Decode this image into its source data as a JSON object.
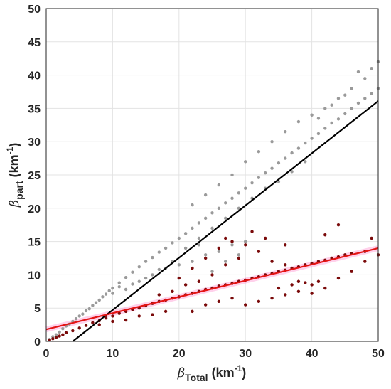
{
  "chart_data": {
    "type": "scatter",
    "title": "",
    "xlabel": {
      "symbol": "β",
      "sub": "Total",
      "unit": "(km",
      "sup": "-1",
      "close": ")"
    },
    "ylabel": {
      "symbol": "β",
      "sub": "part",
      "unit": "(km",
      "sup": "-1",
      "close": ")"
    },
    "xlim": [
      0,
      50
    ],
    "ylim": [
      0,
      50
    ],
    "xticks": [
      0,
      10,
      20,
      30,
      40,
      50
    ],
    "yticks": [
      0,
      5,
      10,
      15,
      20,
      25,
      30,
      35,
      40,
      45,
      50
    ],
    "grid": true,
    "legend": "none",
    "series": [
      {
        "color": "#9a9a9a",
        "marker": "dot",
        "points": [
          [
            0.5,
            0.3
          ],
          [
            1,
            0.7
          ],
          [
            1.5,
            1.0
          ],
          [
            2,
            1.4
          ],
          [
            2.5,
            1.9
          ],
          [
            3,
            2.3
          ],
          [
            3.5,
            2.6
          ],
          [
            4,
            3.0
          ],
          [
            4.5,
            3.4
          ],
          [
            5,
            3.8
          ],
          [
            5.5,
            4.1
          ],
          [
            6,
            4.6
          ],
          [
            6.5,
            4.9
          ],
          [
            7,
            5.4
          ],
          [
            7.5,
            5.8
          ],
          [
            8,
            6.2
          ],
          [
            8.5,
            6.7
          ],
          [
            9,
            7.1
          ],
          [
            9.5,
            7.6
          ],
          [
            10,
            8.0
          ],
          [
            11,
            8.8
          ],
          [
            12,
            9.6
          ],
          [
            13,
            10.4
          ],
          [
            14,
            11.2
          ],
          [
            15,
            12.0
          ],
          [
            16,
            12.6
          ],
          [
            17,
            13.4
          ],
          [
            18,
            14.0
          ],
          [
            19,
            14.8
          ],
          [
            20,
            15.5
          ],
          [
            21,
            16.2
          ],
          [
            22,
            17.0
          ],
          [
            23,
            17.8
          ],
          [
            24,
            18.5
          ],
          [
            25,
            19.3
          ],
          [
            26,
            20.0
          ],
          [
            27,
            20.8
          ],
          [
            28,
            21.5
          ],
          [
            29,
            22.3
          ],
          [
            30,
            23.0
          ],
          [
            31,
            23.8
          ],
          [
            32,
            24.6
          ],
          [
            33,
            25.3
          ],
          [
            34,
            26.0
          ],
          [
            35,
            26.8
          ],
          [
            36,
            27.5
          ],
          [
            37,
            28.3
          ],
          [
            38,
            29.0
          ],
          [
            39,
            29.8
          ],
          [
            40,
            30.5
          ],
          [
            41,
            31.2
          ],
          [
            42,
            32.0
          ],
          [
            43,
            32.8
          ],
          [
            44,
            33.4
          ],
          [
            45,
            34.2
          ],
          [
            46,
            35.0
          ],
          [
            47,
            35.8
          ],
          [
            48,
            36.5
          ],
          [
            49,
            37.2
          ],
          [
            50,
            38.0
          ],
          [
            22,
            20.5
          ],
          [
            24,
            22.0
          ],
          [
            26,
            23.5
          ],
          [
            28,
            25.0
          ],
          [
            30,
            27.0
          ],
          [
            32,
            28.5
          ],
          [
            34,
            30.0
          ],
          [
            36,
            31.5
          ],
          [
            38,
            33.0
          ],
          [
            40,
            34.0
          ],
          [
            42,
            35.0
          ],
          [
            44,
            36.5
          ],
          [
            46,
            38.0
          ],
          [
            48,
            39.5
          ],
          [
            49,
            41.0
          ],
          [
            50,
            42.0
          ],
          [
            47,
            40.5
          ],
          [
            45,
            37.0
          ],
          [
            43,
            35.5
          ],
          [
            41,
            33.5
          ],
          [
            20,
            11.5
          ],
          [
            22,
            12.0
          ],
          [
            24,
            13.0
          ],
          [
            26,
            13.5
          ],
          [
            28,
            14.5
          ],
          [
            30,
            15.0
          ],
          [
            25,
            10.5
          ],
          [
            27,
            12.0
          ],
          [
            29,
            13.0
          ],
          [
            23,
            14.5
          ],
          [
            15,
            9.5
          ],
          [
            16,
            10.0
          ],
          [
            17,
            10.8
          ],
          [
            18,
            11.0
          ],
          [
            19,
            12.0
          ],
          [
            12,
            7.8
          ],
          [
            13,
            8.6
          ],
          [
            14,
            9.0
          ],
          [
            11,
            8.2
          ],
          [
            10,
            7.2
          ],
          [
            35,
            24.0
          ],
          [
            37,
            25.5
          ],
          [
            39,
            27.0
          ],
          [
            33,
            23.0
          ],
          [
            31,
            21.5
          ],
          [
            29,
            20.0
          ],
          [
            27,
            18.5
          ],
          [
            25,
            17.0
          ],
          [
            23,
            15.5
          ],
          [
            21,
            14.0
          ]
        ]
      },
      {
        "color": "#7a0a0a",
        "marker": "dot",
        "points": [
          [
            0.5,
            0.2
          ],
          [
            1,
            0.4
          ],
          [
            1.5,
            0.6
          ],
          [
            2,
            0.8
          ],
          [
            2.5,
            1.0
          ],
          [
            3,
            1.3
          ],
          [
            4,
            1.6
          ],
          [
            5,
            2.0
          ],
          [
            6,
            2.4
          ],
          [
            7,
            2.8
          ],
          [
            8,
            3.1
          ],
          [
            9,
            3.5
          ],
          [
            10,
            3.8
          ],
          [
            11,
            4.2
          ],
          [
            12,
            4.5
          ],
          [
            13,
            4.8
          ],
          [
            14,
            5.0
          ],
          [
            15,
            5.4
          ],
          [
            16,
            5.7
          ],
          [
            17,
            6.0
          ],
          [
            18,
            6.2
          ],
          [
            19,
            6.5
          ],
          [
            20,
            6.7
          ],
          [
            21,
            7.0
          ],
          [
            22,
            7.2
          ],
          [
            23,
            7.5
          ],
          [
            24,
            7.8
          ],
          [
            25,
            8.0
          ],
          [
            26,
            8.3
          ],
          [
            27,
            8.5
          ],
          [
            28,
            8.7
          ],
          [
            29,
            9.0
          ],
          [
            30,
            9.2
          ],
          [
            31,
            9.5
          ],
          [
            32,
            9.7
          ],
          [
            33,
            10.0
          ],
          [
            34,
            10.2
          ],
          [
            35,
            10.5
          ],
          [
            36,
            10.7
          ],
          [
            37,
            11.0
          ],
          [
            38,
            11.2
          ],
          [
            39,
            11.5
          ],
          [
            40,
            11.7
          ],
          [
            41,
            12.0
          ],
          [
            42,
            12.2
          ],
          [
            43,
            12.5
          ],
          [
            44,
            12.7
          ],
          [
            45,
            13.0
          ],
          [
            46,
            13.2
          ],
          [
            48,
            13.5
          ],
          [
            20,
            9.5
          ],
          [
            22,
            11.0
          ],
          [
            24,
            12.5
          ],
          [
            26,
            14.0
          ],
          [
            28,
            15.0
          ],
          [
            30,
            14.5
          ],
          [
            25,
            10.0
          ],
          [
            27,
            11.5
          ],
          [
            29,
            12.5
          ],
          [
            32,
            13.5
          ],
          [
            34,
            12.0
          ],
          [
            36,
            11.5
          ],
          [
            38,
            9.0
          ],
          [
            40,
            8.5
          ],
          [
            42,
            8.0
          ],
          [
            44,
            9.5
          ],
          [
            46,
            10.5
          ],
          [
            48,
            12.0
          ],
          [
            50,
            13.0
          ],
          [
            49,
            15.5
          ],
          [
            30,
            5.5
          ],
          [
            32,
            6.0
          ],
          [
            34,
            6.5
          ],
          [
            36,
            7.0
          ],
          [
            38,
            7.5
          ],
          [
            40,
            7.2
          ],
          [
            35,
            8.0
          ],
          [
            37,
            8.5
          ],
          [
            39,
            8.8
          ],
          [
            41,
            9.0
          ],
          [
            22,
            4.5
          ],
          [
            24,
            5.5
          ],
          [
            26,
            6.0
          ],
          [
            28,
            6.5
          ],
          [
            18,
            4.5
          ],
          [
            16,
            4.0
          ],
          [
            14,
            3.8
          ],
          [
            12,
            3.2
          ],
          [
            10,
            3.0
          ],
          [
            8,
            2.5
          ],
          [
            31,
            16.5
          ],
          [
            33,
            15.5
          ],
          [
            44,
            17.5
          ],
          [
            42,
            16.0
          ],
          [
            36,
            14.5
          ],
          [
            27,
            15.5
          ],
          [
            23,
            9.0
          ],
          [
            21,
            8.5
          ],
          [
            19,
            7.5
          ],
          [
            17,
            7.0
          ]
        ]
      }
    ],
    "fits": [
      {
        "color": "#000000",
        "x": [
          4,
          50
        ],
        "y": [
          0,
          36.1
        ]
      },
      {
        "color": "#e41414",
        "band_color": "#ff9ad2",
        "x": [
          0,
          50
        ],
        "y": [
          1.8,
          14.0
        ]
      }
    ]
  }
}
